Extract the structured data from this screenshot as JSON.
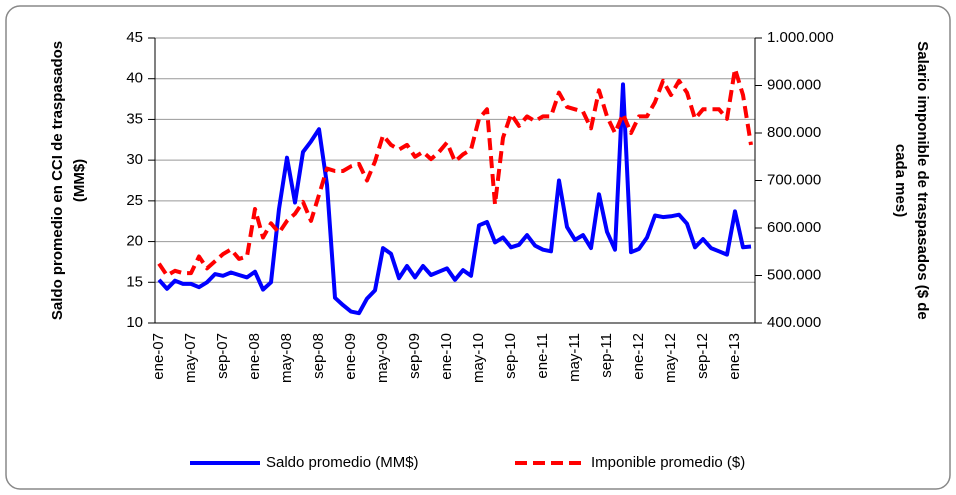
{
  "chart_data": {
    "type": "line",
    "categories": [
      "ene-07",
      null,
      null,
      null,
      "may-07",
      null,
      null,
      null,
      "sep-07",
      null,
      null,
      null,
      "ene-08",
      null,
      null,
      null,
      "may-08",
      null,
      null,
      null,
      "sep-08",
      null,
      null,
      null,
      "ene-09",
      null,
      null,
      null,
      "may-09",
      null,
      null,
      null,
      "sep-09",
      null,
      null,
      null,
      "ene-10",
      null,
      null,
      null,
      "may-10",
      null,
      null,
      null,
      "sep-10",
      null,
      null,
      null,
      "ene-11",
      null,
      null,
      null,
      "may-11",
      null,
      null,
      null,
      "sep-11",
      null,
      null,
      null,
      "ene-12",
      null,
      null,
      null,
      "may-12",
      null,
      null,
      null,
      "sep-12",
      null,
      null,
      null,
      "ene-13",
      null,
      null
    ],
    "y_label": [
      "Saldo promedio en CCI de traspasados",
      "(MM$)"
    ],
    "y2_label": [
      "Salario imponible de traspasados ($ de",
      "cada mes)"
    ],
    "ylim": [
      10,
      45
    ],
    "yticks": [
      10,
      15,
      20,
      25,
      30,
      35,
      40,
      45
    ],
    "y2lim": [
      400000,
      1000000
    ],
    "y2ticks": [
      {
        "value": 400000,
        "label": "400.000"
      },
      {
        "value": 500000,
        "label": "500.000"
      },
      {
        "value": 600000,
        "label": "600.000"
      },
      {
        "value": 700000,
        "label": "700.000"
      },
      {
        "value": 800000,
        "label": "800.000"
      },
      {
        "value": 900000,
        "label": "900.000"
      },
      {
        "value": 1000000,
        "label": "1.000.000"
      }
    ],
    "grid": true,
    "legend": "bottom",
    "series": [
      {
        "name": "Saldo promedio (MM$)",
        "color": "#0000ff",
        "dash": false,
        "values": [
          15.3,
          14.2,
          15.2,
          14.8,
          14.8,
          14.4,
          15,
          16,
          15.8,
          16.2,
          15.9,
          15.6,
          16.3,
          14.1,
          15,
          24,
          30.3,
          24.8,
          31,
          32.3,
          33.8,
          27,
          13.1,
          12.2,
          11.4,
          11.2,
          13,
          14,
          19.2,
          18.5,
          15.5,
          17,
          15.6,
          17,
          15.9,
          16.3,
          16.7,
          15.3,
          16.5,
          15.8,
          22,
          22.4,
          19.9,
          20.5,
          19.3,
          19.6,
          20.8,
          19.5,
          19,
          18.8,
          27.5,
          21.8,
          20.2,
          20.8,
          19.2,
          25.8,
          21.2,
          19,
          39.3,
          18.7,
          19.1,
          20.5,
          23.2,
          23,
          23.1,
          23.3,
          22.2,
          19.3,
          20.3,
          19.2,
          18.8,
          18.4,
          23.7,
          19.3,
          19.4
        ]
      },
      {
        "name": "Imponible promedio ($)",
        "color": "#ff0000",
        "dash": true,
        "axis": "y2",
        "values": [
          525000,
          500000,
          510000,
          505000,
          505000,
          540000,
          515000,
          530000,
          545000,
          555000,
          535000,
          540000,
          640000,
          580000,
          610000,
          590000,
          615000,
          630000,
          655000,
          615000,
          670000,
          725000,
          720000,
          720000,
          730000,
          735000,
          700000,
          740000,
          795000,
          775000,
          765000,
          775000,
          750000,
          760000,
          745000,
          760000,
          780000,
          740000,
          755000,
          765000,
          830000,
          850000,
          650000,
          790000,
          840000,
          815000,
          835000,
          825000,
          835000,
          835000,
          885000,
          855000,
          850000,
          845000,
          810000,
          890000,
          835000,
          800000,
          840000,
          800000,
          835000,
          835000,
          865000,
          910000,
          880000,
          910000,
          885000,
          830000,
          850000,
          850000,
          850000,
          830000,
          935000,
          880000,
          775000
        ]
      }
    ]
  }
}
